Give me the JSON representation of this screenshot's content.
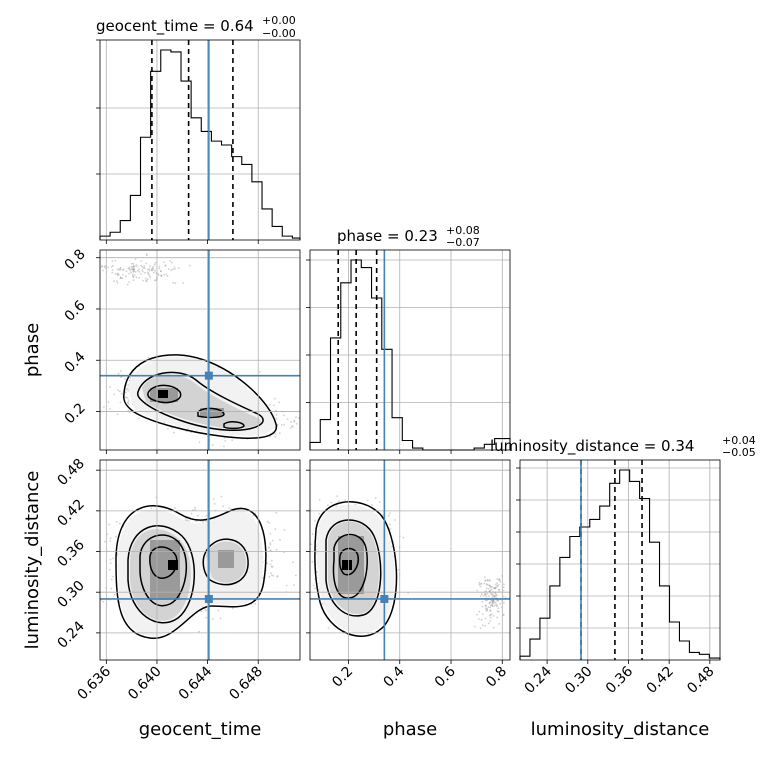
{
  "chart_data": {
    "type": "corner",
    "parameters": [
      "geocent_time",
      "phase",
      "luminosity_distance"
    ],
    "truths": {
      "geocent_time": 0.6441,
      "phase": 0.34,
      "luminosity_distance": 0.29
    },
    "panels": [
      {
        "kind": "histogram",
        "parameter": "geocent_time",
        "title": {
          "prefix": "geocent_time = 0.64",
          "sup": "+0.00",
          "sub": "−0.00"
        },
        "xlim": [
          0.6355,
          0.6513
        ],
        "bin_edges": [
          0.6355,
          0.6363,
          0.6371,
          0.6379,
          0.6387,
          0.6395,
          0.6403,
          0.6411,
          0.6419,
          0.6427,
          0.6435,
          0.6443,
          0.6451,
          0.6459,
          0.6467,
          0.6475,
          0.6483,
          0.6491,
          0.6499,
          0.6507,
          0.6513
        ],
        "counts": [
          0.02,
          0.04,
          0.1,
          0.23,
          0.53,
          0.87,
          0.98,
          0.97,
          0.82,
          0.63,
          0.56,
          0.51,
          0.49,
          0.43,
          0.39,
          0.3,
          0.16,
          0.07,
          0.02,
          0.01
        ],
        "quantile_lines": [
          0.6396,
          0.6425,
          0.646
        ],
        "y_ticks_unlabeled": 3
      },
      {
        "kind": "histogram",
        "parameter": "phase",
        "title": {
          "prefix": "phase = 0.23",
          "sup": "+0.08",
          "sub": "−0.07"
        },
        "xlim": [
          0.05,
          0.83
        ],
        "bin_edges": [
          0.05,
          0.09,
          0.13,
          0.17,
          0.21,
          0.25,
          0.29,
          0.33,
          0.37,
          0.41,
          0.45,
          0.49,
          0.53,
          0.57,
          0.61,
          0.65,
          0.69,
          0.73,
          0.77,
          0.81,
          0.83
        ],
        "counts": [
          0.04,
          0.16,
          0.59,
          0.88,
          1.0,
          0.96,
          0.8,
          0.53,
          0.17,
          0.05,
          0.01,
          0.0,
          0.0,
          0.0,
          0.0,
          0.0,
          0.01,
          0.03,
          0.06,
          0.06
        ],
        "quantile_lines": [
          0.16,
          0.23,
          0.31
        ],
        "x_ticks": [
          0.2,
          0.4,
          0.6,
          0.8
        ]
      },
      {
        "kind": "histogram",
        "parameter": "luminosity_distance",
        "title": {
          "prefix": "luminosity_distance = 0.34",
          "sup": "+0.04",
          "sub": "−0.05"
        },
        "xlim": [
          0.2,
          0.495
        ],
        "bin_edges": [
          0.2,
          0.2147,
          0.2294,
          0.2441,
          0.2588,
          0.2735,
          0.2882,
          0.3029,
          0.3176,
          0.3323,
          0.347,
          0.3617,
          0.3764,
          0.3911,
          0.4058,
          0.4205,
          0.4352,
          0.4499,
          0.4646,
          0.4793,
          0.495
        ],
        "counts": [
          0.02,
          0.11,
          0.22,
          0.39,
          0.54,
          0.65,
          0.7,
          0.74,
          0.81,
          0.93,
          1.0,
          0.94,
          0.85,
          0.62,
          0.39,
          0.2,
          0.1,
          0.04,
          0.03,
          0.01
        ],
        "quantile_lines": [
          0.29,
          0.34,
          0.38
        ],
        "x_ticks": [
          0.24,
          0.3,
          0.36,
          0.42,
          0.48
        ]
      }
    ],
    "contour_panels": [
      {
        "x": "geocent_time",
        "y": "phase",
        "xlim": [
          0.6355,
          0.6513
        ],
        "ylim": [
          0.05,
          0.83
        ]
      },
      {
        "x": "geocent_time",
        "y": "luminosity_distance",
        "xlim": [
          0.6355,
          0.6513
        ],
        "ylim": [
          0.2,
          0.495
        ]
      },
      {
        "x": "phase",
        "y": "luminosity_distance",
        "xlim": [
          0.05,
          0.83
        ],
        "ylim": [
          0.2,
          0.495
        ]
      }
    ],
    "axis_ticks": {
      "geocent_time": [
        0.636,
        0.64,
        0.644,
        0.648
      ],
      "phase_y": [
        0.2,
        0.4,
        0.6,
        0.8
      ],
      "luminosity_distance_y": [
        0.24,
        0.3,
        0.36,
        0.42,
        0.48
      ]
    },
    "tick_labels": {
      "geocent_time": [
        "0.636",
        "0.640",
        "0.644",
        "0.648"
      ],
      "phase": [
        "0.2",
        "0.4",
        "0.6",
        "0.8"
      ],
      "luminosity_distance": [
        "0.24",
        "0.30",
        "0.36",
        "0.42",
        "0.48"
      ]
    },
    "axis_labels": {
      "geocent_time": "geocent_time",
      "phase": "phase",
      "luminosity_distance": "luminosity_distance"
    },
    "grid": true,
    "colors": {
      "truth": "#4682b4",
      "hist": "#000000",
      "samples": "#9a9a9a"
    }
  }
}
